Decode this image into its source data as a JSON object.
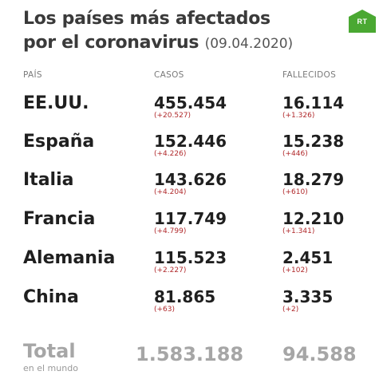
{
  "title": {
    "line1": "Los países más afectados",
    "line2": "por el coronavirus",
    "date": "(09.04.2020)"
  },
  "logo": {
    "text": "RT",
    "color": "#4aa832"
  },
  "headers": {
    "country": "PAÍS",
    "cases": "CASOS",
    "deaths": "FALLECIDOS"
  },
  "rows": [
    {
      "country": "EE.UU.",
      "cases": "455.454",
      "cases_delta": "(+20.527)",
      "deaths": "16.114",
      "deaths_delta": "(+1.326)"
    },
    {
      "country": "España",
      "cases": "152.446",
      "cases_delta": "(+4.226)",
      "deaths": "15.238",
      "deaths_delta": "(+446)"
    },
    {
      "country": "Italia",
      "cases": "143.626",
      "cases_delta": "(+4.204)",
      "deaths": "18.279",
      "deaths_delta": "(+610)"
    },
    {
      "country": "Francia",
      "cases": "117.749",
      "cases_delta": "(+4.799)",
      "deaths": "12.210",
      "deaths_delta": "(+1.341)"
    },
    {
      "country": "Alemania",
      "cases": "115.523",
      "cases_delta": "(+2.227)",
      "deaths": "2.451",
      "deaths_delta": "(+102)"
    },
    {
      "country": "China",
      "cases": "81.865",
      "cases_delta": "(+63)",
      "deaths": "3.335",
      "deaths_delta": "(+2)"
    }
  ],
  "total": {
    "label": "Total",
    "sublabel": "en el mundo",
    "cases": "1.583.188",
    "deaths": "94.588"
  },
  "colors": {
    "delta": "#b0292b",
    "total": "#a6a6a6"
  }
}
